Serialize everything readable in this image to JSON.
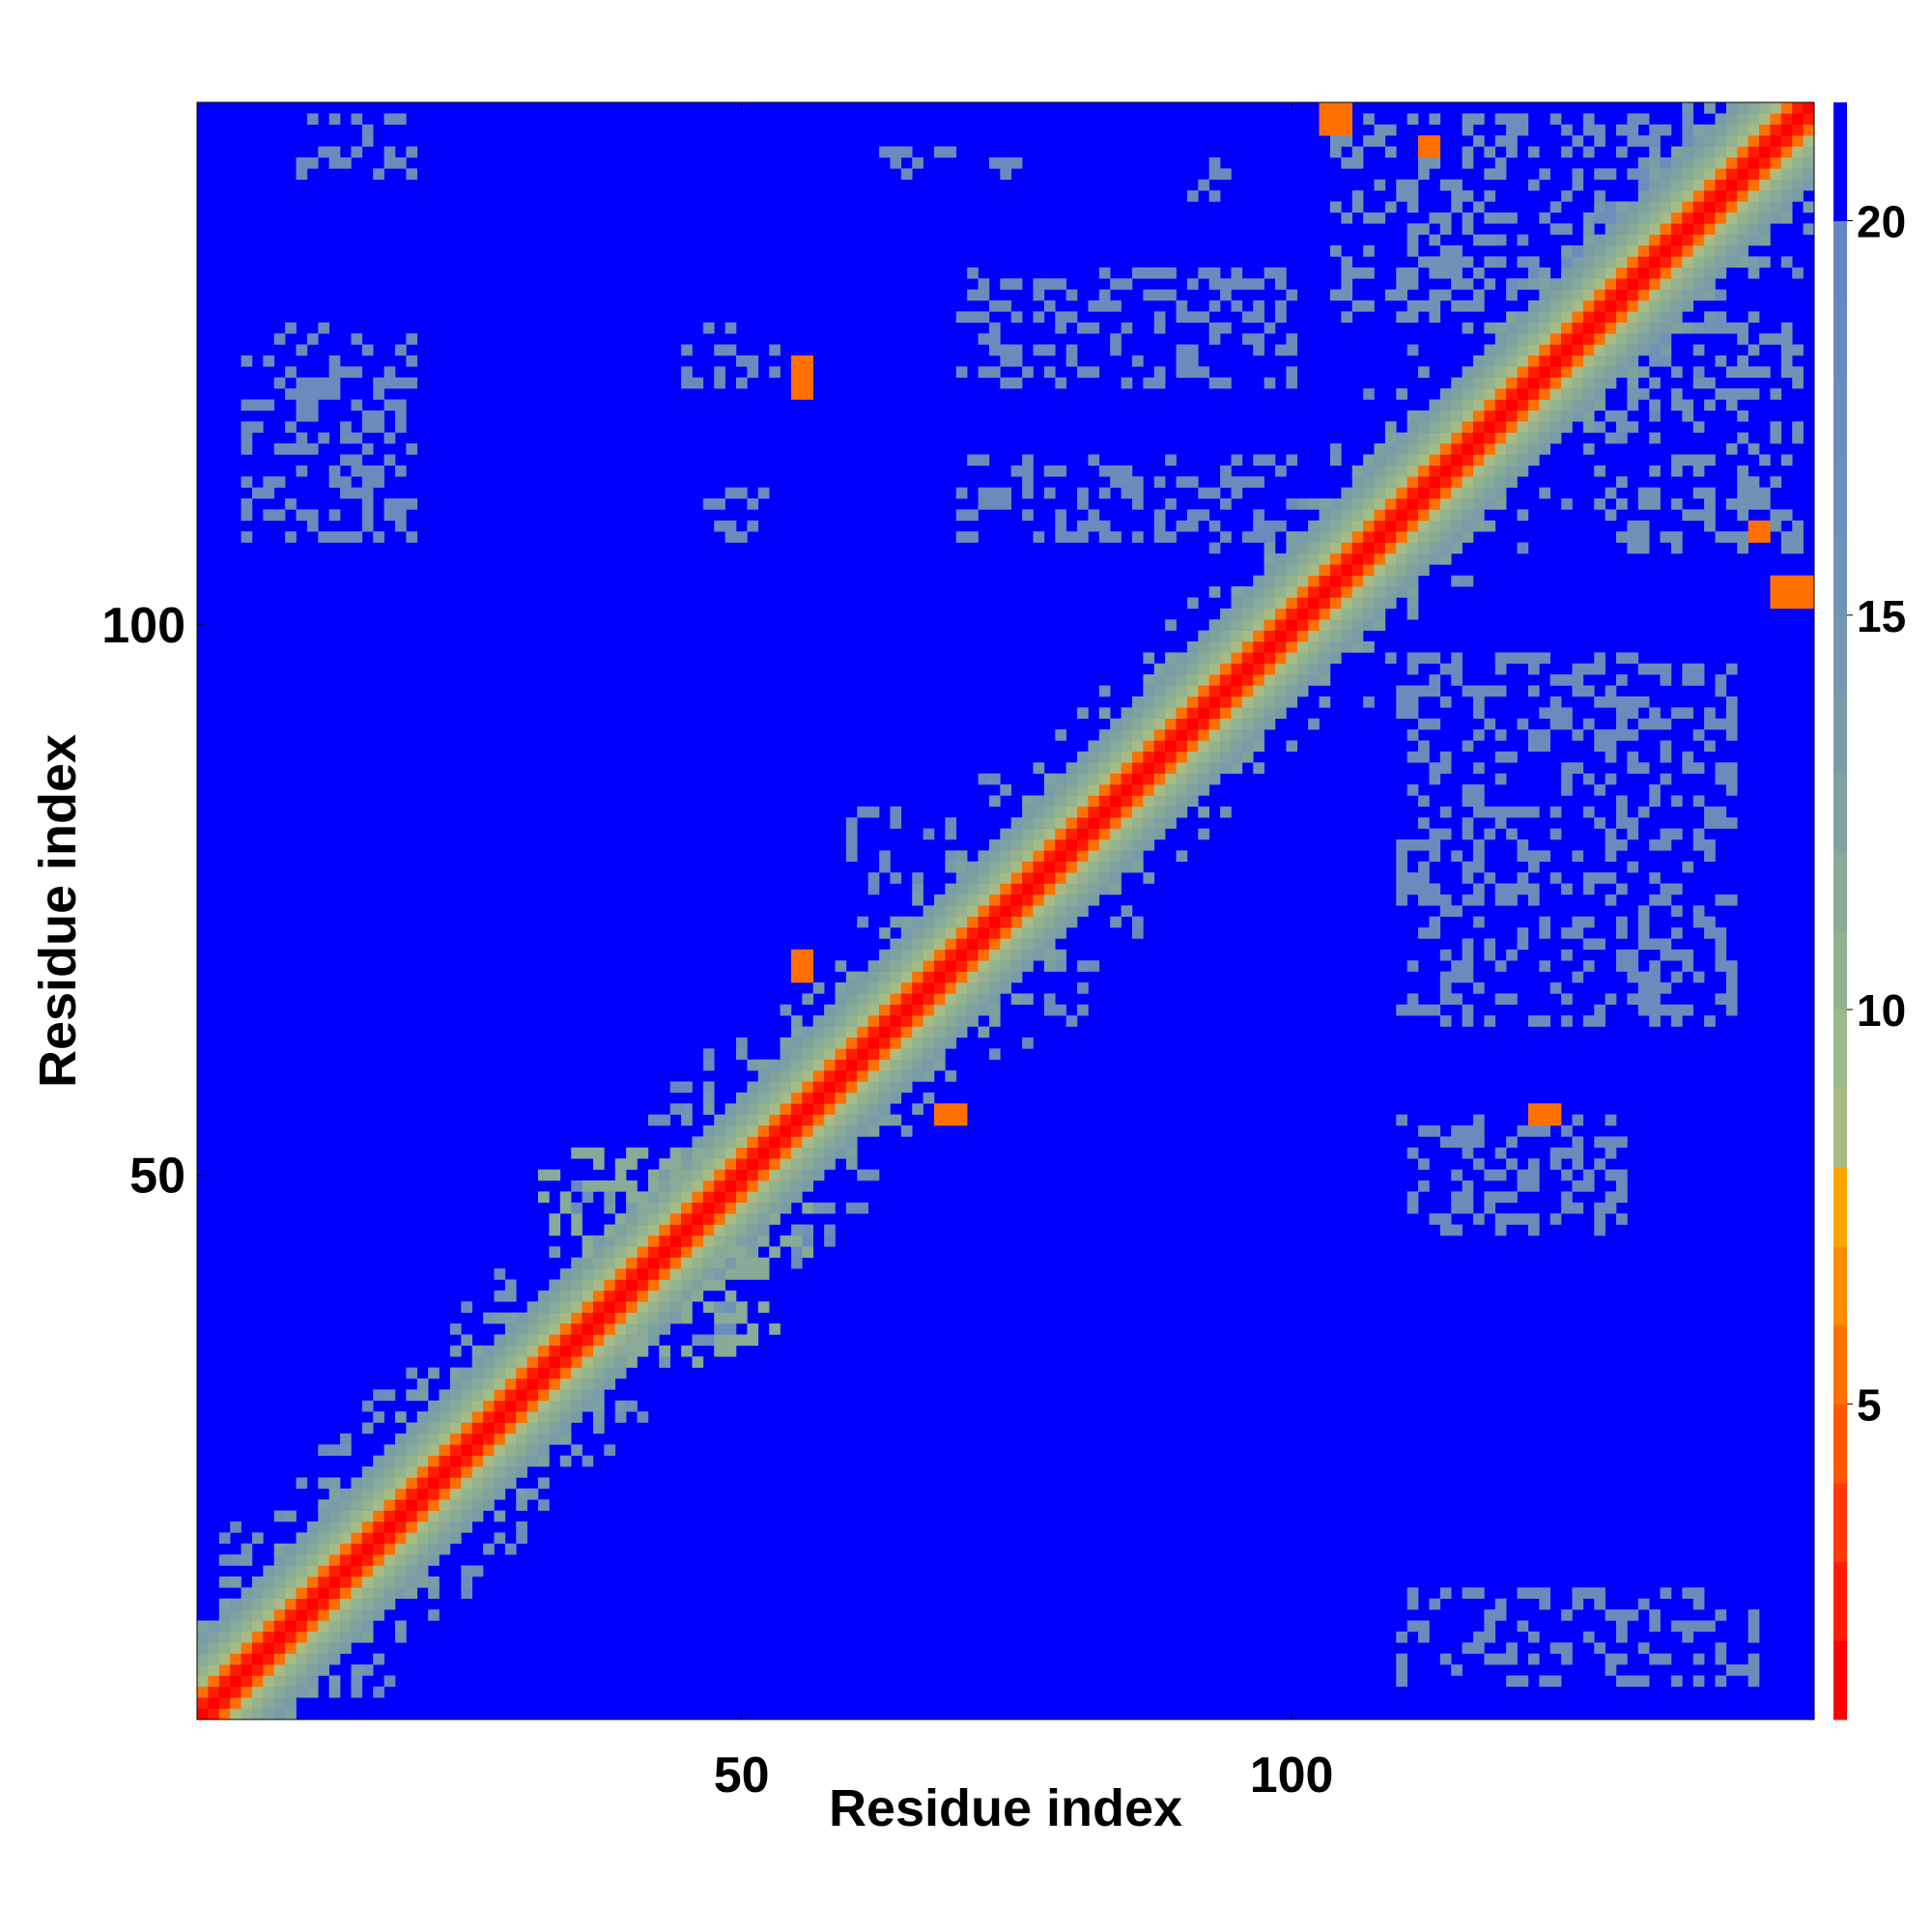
{
  "chart_data": {
    "type": "heatmap",
    "title": "",
    "xlabel": "Residue index",
    "ylabel": "Residue index",
    "n_residues": 147,
    "xlim": [
      1,
      147
    ],
    "ylim": [
      1,
      147
    ],
    "xticks": [
      50,
      100
    ],
    "yticks": [
      50,
      100
    ],
    "colorbar": {
      "ticks": [
        5,
        10,
        15,
        20
      ],
      "range": [
        1,
        21.5
      ],
      "levels": [
        {
          "max": 2,
          "color": "#ff0000"
        },
        {
          "max": 3,
          "color": "#ff1d00"
        },
        {
          "max": 4,
          "color": "#ff3a00"
        },
        {
          "max": 5,
          "color": "#ff5500"
        },
        {
          "max": 6,
          "color": "#ff7000"
        },
        {
          "max": 7,
          "color": "#ff8c00"
        },
        {
          "max": 8,
          "color": "#ffa500"
        },
        {
          "max": 9,
          "color": "#a8bb83"
        },
        {
          "max": 10,
          "color": "#9cb98a"
        },
        {
          "max": 11,
          "color": "#93b290"
        },
        {
          "max": 12,
          "color": "#88aa97"
        },
        {
          "max": 13,
          "color": "#7fa2a0"
        },
        {
          "max": 14,
          "color": "#789ca8"
        },
        {
          "max": 15,
          "color": "#7497b0"
        },
        {
          "max": 16,
          "color": "#6f93b6"
        },
        {
          "max": 17,
          "color": "#6b8fba"
        },
        {
          "max": 18,
          "color": "#6a8cbd"
        },
        {
          "max": 19,
          "color": "#6889bf"
        },
        {
          "max": 20,
          "color": "#6586c0"
        },
        {
          "max": 99,
          "color": "#0000ff"
        }
      ]
    },
    "diagonal_profile": [
      {
        "offset": 0,
        "value": 1
      },
      {
        "offset": 1,
        "value": 3
      },
      {
        "offset": 2,
        "value": 6
      },
      {
        "offset": 3,
        "value": 9
      },
      {
        "offset": 4,
        "value": 11
      },
      {
        "offset": 5,
        "value": 12
      },
      {
        "offset": 6,
        "value": 13
      },
      {
        "offset": 7,
        "value": 14
      }
    ],
    "contact_blocks": [
      {
        "x": [
          103,
          105
        ],
        "y": [
          145,
          147
        ],
        "value": 6
      },
      {
        "x": [
          144,
          147
        ],
        "y": [
          102,
          104
        ],
        "value": 6
      },
      {
        "x": [
          55,
          56
        ],
        "y": [
          123,
          124
        ],
        "value": 6
      },
      {
        "x": [
          55,
          56
        ],
        "y": [
          121,
          122
        ],
        "value": 6
      },
      {
        "x": [
          55,
          56
        ],
        "y": [
          68,
          70
        ],
        "value": 6
      },
      {
        "x": [
          68,
          70
        ],
        "y": [
          55,
          56
        ],
        "value": 6
      },
      {
        "x": [
          122,
          124
        ],
        "y": [
          55,
          56
        ],
        "value": 6
      },
      {
        "x": [
          112,
          113
        ],
        "y": [
          143,
          144
        ],
        "value": 6
      },
      {
        "x": [
          142,
          143
        ],
        "y": [
          108,
          109
        ],
        "value": 6
      },
      {
        "x": [
          104,
          118
        ],
        "y": [
          128,
          146
        ],
        "value": 16
      },
      {
        "x": [
          117,
          140
        ],
        "y": [
          130,
          146
        ],
        "value": 17
      },
      {
        "x": [
          128,
          146
        ],
        "y": [
          107,
          128
        ],
        "value": 16
      },
      {
        "x": [
          70,
          100
        ],
        "y": [
          122,
          132
        ],
        "value": 18
      },
      {
        "x": [
          70,
          100
        ],
        "y": [
          108,
          115
        ],
        "value": 18
      },
      {
        "x": [
          45,
          53
        ],
        "y": [
          122,
          127
        ],
        "value": 18
      },
      {
        "x": [
          47,
          52
        ],
        "y": [
          108,
          112
        ],
        "value": 18
      },
      {
        "x": [
          5,
          20
        ],
        "y": [
          108,
          127
        ],
        "value": 18
      },
      {
        "x": [
          10,
          20
        ],
        "y": [
          141,
          146
        ],
        "value": 18
      },
      {
        "x": [
          63,
          76
        ],
        "y": [
          141,
          143
        ],
        "value": 18
      },
      {
        "x": [
          91,
          94
        ],
        "y": [
          139,
          143
        ],
        "value": 18
      },
      {
        "x": [
          110,
          140
        ],
        "y": [
          64,
          97
        ],
        "value": 18
      },
      {
        "x": [
          110,
          130
        ],
        "y": [
          45,
          55
        ],
        "value": 18
      },
      {
        "x": [
          110,
          142
        ],
        "y": [
          4,
          12
        ],
        "value": 18
      },
      {
        "x": [
          60,
          66
        ],
        "y": [
          77,
          83
        ],
        "value": 18
      },
      {
        "x": [
          78,
          82
        ],
        "y": [
          64,
          66
        ],
        "value": 18
      },
      {
        "x": [
          32,
          56
        ],
        "y": [
          43,
          52
        ],
        "value": 12
      },
      {
        "x": [
          40,
          53
        ],
        "y": [
          33,
          42
        ],
        "value": 12
      }
    ]
  }
}
